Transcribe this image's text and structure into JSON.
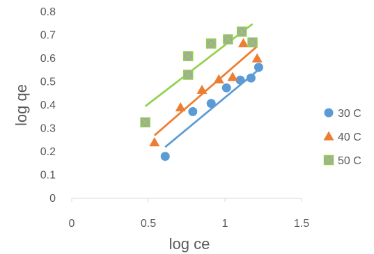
{
  "chart_data": {
    "type": "scatter",
    "title": "",
    "xlabel": "log ce",
    "ylabel": "log qe",
    "xlim": [
      0,
      1.5
    ],
    "ylim": [
      0,
      0.8
    ],
    "xticks": [
      "0",
      "0.5",
      "1",
      "1.5"
    ],
    "yticks": [
      "0",
      "0.1",
      "0.2",
      "0.3",
      "0.4",
      "0.5",
      "0.6",
      "0.7",
      "0.8"
    ],
    "grid": false,
    "legend_position": "right",
    "series": [
      {
        "name": "30 C",
        "color": "#5B9BD5",
        "marker": "circle",
        "points": [
          [
            0.61,
            0.18
          ],
          [
            0.79,
            0.372
          ],
          [
            0.91,
            0.407
          ],
          [
            1.01,
            0.474
          ],
          [
            1.1,
            0.507
          ],
          [
            1.17,
            0.516
          ],
          [
            1.22,
            0.562
          ]
        ],
        "trendline": [
          [
            0.61,
            0.22
          ],
          [
            1.22,
            0.552
          ]
        ]
      },
      {
        "name": "40 C",
        "color": "#ED7D31",
        "marker": "triangle",
        "points": [
          [
            0.54,
            0.24
          ],
          [
            0.71,
            0.39
          ],
          [
            0.85,
            0.465
          ],
          [
            0.96,
            0.51
          ],
          [
            1.05,
            0.52
          ],
          [
            1.12,
            0.665
          ],
          [
            1.21,
            0.6
          ]
        ],
        "trendline": [
          [
            0.54,
            0.27
          ],
          [
            1.21,
            0.652
          ]
        ]
      },
      {
        "name": "50 C",
        "color": "#A5A5A5",
        "trend_color": "#92D050",
        "marker": "square-x",
        "points": [
          [
            0.48,
            0.326
          ],
          [
            0.76,
            0.53
          ],
          [
            0.76,
            0.61
          ],
          [
            0.91,
            0.664
          ],
          [
            1.02,
            0.682
          ],
          [
            1.11,
            0.715
          ],
          [
            1.18,
            0.669
          ]
        ],
        "trendline": [
          [
            0.48,
            0.395
          ],
          [
            1.18,
            0.748
          ]
        ]
      }
    ]
  }
}
